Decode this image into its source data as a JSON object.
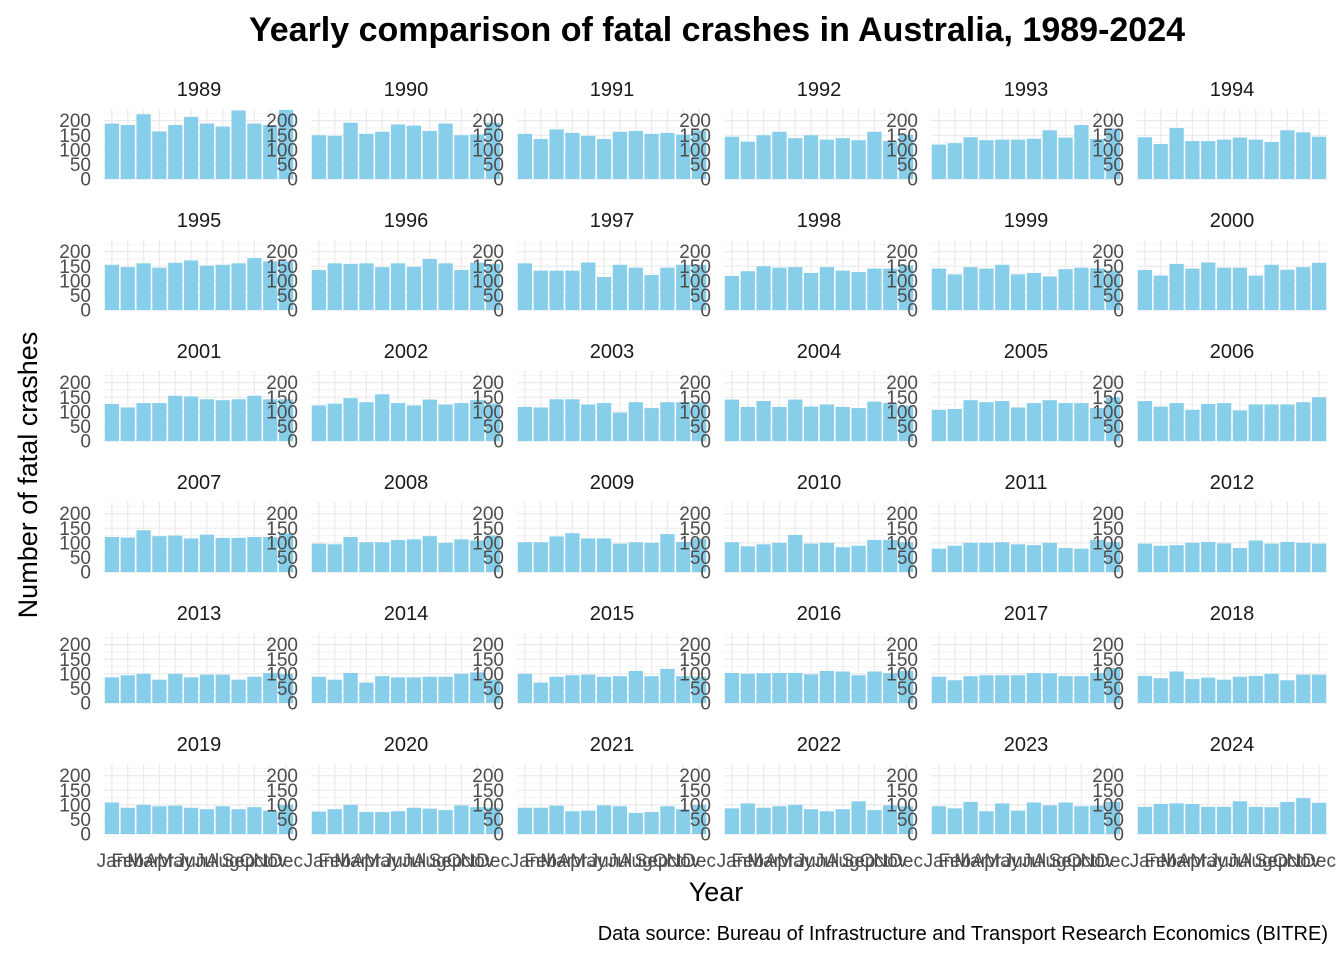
{
  "chart_data": {
    "type": "bar",
    "title": "Yearly comparison of fatal crashes in Australia, 1989-2024",
    "xlabel": "Year",
    "ylabel": "Number of fatal crashes",
    "caption": "Data source: Bureau of Infrastructure and Transport Research Economics (BITRE)",
    "categories": [
      "Jan",
      "Feb",
      "Mar",
      "Apr",
      "May",
      "Jun",
      "Jul",
      "Aug",
      "Sep",
      "Oct",
      "Nov",
      "Dec"
    ],
    "ylim": [
      0,
      240
    ],
    "yticks": [
      0,
      50,
      100,
      150,
      200
    ],
    "bar_color": "#87CEEB",
    "grid": true,
    "legend": "none",
    "layout": "facet grid, 6 columns x 6 rows, one panel per year",
    "panels": [
      {
        "year": "1989",
        "values": [
          190,
          185,
          222,
          163,
          185,
          213,
          190,
          180,
          235,
          190,
          185,
          237
        ]
      },
      {
        "year": "1990",
        "values": [
          150,
          148,
          193,
          155,
          162,
          187,
          183,
          165,
          190,
          150,
          153,
          193
        ]
      },
      {
        "year": "1991",
        "values": [
          155,
          137,
          170,
          158,
          148,
          137,
          162,
          165,
          155,
          158,
          152,
          167
        ]
      },
      {
        "year": "1992",
        "values": [
          145,
          128,
          150,
          162,
          140,
          150,
          135,
          140,
          133,
          162,
          130,
          152
        ]
      },
      {
        "year": "1993",
        "values": [
          118,
          123,
          143,
          133,
          135,
          135,
          138,
          167,
          142,
          185,
          137,
          173
        ]
      },
      {
        "year": "1994",
        "values": [
          143,
          120,
          175,
          130,
          130,
          135,
          142,
          135,
          127,
          167,
          160,
          145
        ]
      },
      {
        "year": "1995",
        "values": [
          155,
          147,
          160,
          145,
          162,
          170,
          152,
          155,
          160,
          178,
          167,
          167
        ]
      },
      {
        "year": "1996",
        "values": [
          137,
          160,
          158,
          160,
          147,
          160,
          148,
          175,
          160,
          137,
          162,
          158
        ]
      },
      {
        "year": "1997",
        "values": [
          160,
          135,
          135,
          135,
          163,
          113,
          155,
          145,
          120,
          145,
          155,
          155
        ]
      },
      {
        "year": "1998",
        "values": [
          117,
          133,
          150,
          145,
          147,
          127,
          147,
          135,
          130,
          142,
          142,
          153
        ]
      },
      {
        "year": "1999",
        "values": [
          142,
          122,
          147,
          142,
          155,
          122,
          127,
          115,
          140,
          145,
          143,
          135
        ]
      },
      {
        "year": "2000",
        "values": [
          137,
          118,
          158,
          142,
          163,
          145,
          145,
          118,
          155,
          138,
          147,
          162
        ]
      },
      {
        "year": "2001",
        "values": [
          127,
          115,
          130,
          130,
          155,
          153,
          143,
          140,
          143,
          155,
          143,
          143
        ]
      },
      {
        "year": "2002",
        "values": [
          122,
          128,
          147,
          133,
          160,
          130,
          122,
          142,
          125,
          130,
          140,
          128
        ]
      },
      {
        "year": "2003",
        "values": [
          117,
          115,
          143,
          143,
          125,
          130,
          97,
          133,
          113,
          133,
          133,
          133
        ]
      },
      {
        "year": "2004",
        "values": [
          142,
          117,
          137,
          117,
          142,
          118,
          125,
          117,
          113,
          135,
          130,
          120
        ]
      },
      {
        "year": "2005",
        "values": [
          107,
          110,
          140,
          133,
          137,
          115,
          130,
          140,
          130,
          130,
          113,
          150
        ]
      },
      {
        "year": "2006",
        "values": [
          137,
          118,
          130,
          107,
          127,
          130,
          105,
          125,
          125,
          125,
          133,
          150
        ]
      },
      {
        "year": "2007",
        "values": [
          120,
          118,
          143,
          123,
          125,
          115,
          128,
          117,
          117,
          120,
          120,
          133
        ]
      },
      {
        "year": "2008",
        "values": [
          97,
          95,
          120,
          102,
          102,
          110,
          112,
          123,
          100,
          112,
          108,
          125
        ]
      },
      {
        "year": "2009",
        "values": [
          102,
          102,
          122,
          133,
          115,
          115,
          97,
          102,
          100,
          130,
          103,
          115
        ]
      },
      {
        "year": "2010",
        "values": [
          102,
          88,
          95,
          100,
          127,
          97,
          100,
          85,
          90,
          110,
          110,
          102
        ]
      },
      {
        "year": "2011",
        "values": [
          80,
          90,
          100,
          100,
          102,
          95,
          92,
          100,
          82,
          80,
          110,
          102
        ]
      },
      {
        "year": "2012",
        "values": [
          97,
          90,
          92,
          100,
          103,
          98,
          82,
          108,
          97,
          103,
          100,
          97
        ]
      },
      {
        "year": "2013",
        "values": [
          88,
          95,
          100,
          80,
          100,
          88,
          97,
          97,
          80,
          90,
          103,
          100
        ]
      },
      {
        "year": "2014",
        "values": [
          90,
          80,
          103,
          70,
          92,
          88,
          88,
          90,
          90,
          100,
          105,
          80
        ]
      },
      {
        "year": "2015",
        "values": [
          100,
          70,
          90,
          95,
          97,
          90,
          92,
          110,
          92,
          117,
          92,
          90
        ]
      },
      {
        "year": "2016",
        "values": [
          103,
          100,
          102,
          103,
          103,
          98,
          110,
          108,
          95,
          108,
          102,
          110
        ]
      },
      {
        "year": "2017",
        "values": [
          90,
          78,
          92,
          95,
          95,
          95,
          103,
          102,
          92,
          92,
          103,
          120
        ]
      },
      {
        "year": "2018",
        "values": [
          93,
          85,
          108,
          82,
          87,
          80,
          90,
          93,
          100,
          78,
          97,
          97
        ]
      },
      {
        "year": "2019",
        "values": [
          108,
          90,
          100,
          95,
          97,
          90,
          85,
          95,
          85,
          92,
          80,
          100
        ]
      },
      {
        "year": "2020",
        "values": [
          77,
          85,
          100,
          75,
          75,
          78,
          90,
          87,
          82,
          98,
          92,
          90
        ]
      },
      {
        "year": "2021",
        "values": [
          90,
          90,
          97,
          78,
          80,
          98,
          95,
          72,
          75,
          95,
          85,
          100
        ]
      },
      {
        "year": "2022",
        "values": [
          88,
          105,
          90,
          95,
          100,
          85,
          78,
          85,
          112,
          82,
          98,
          95
        ]
      },
      {
        "year": "2023",
        "values": [
          95,
          88,
          110,
          78,
          105,
          80,
          108,
          98,
          108,
          95,
          97,
          110
        ]
      },
      {
        "year": "2024",
        "values": [
          93,
          103,
          105,
          103,
          93,
          93,
          112,
          93,
          92,
          110,
          123,
          107
        ]
      }
    ]
  }
}
